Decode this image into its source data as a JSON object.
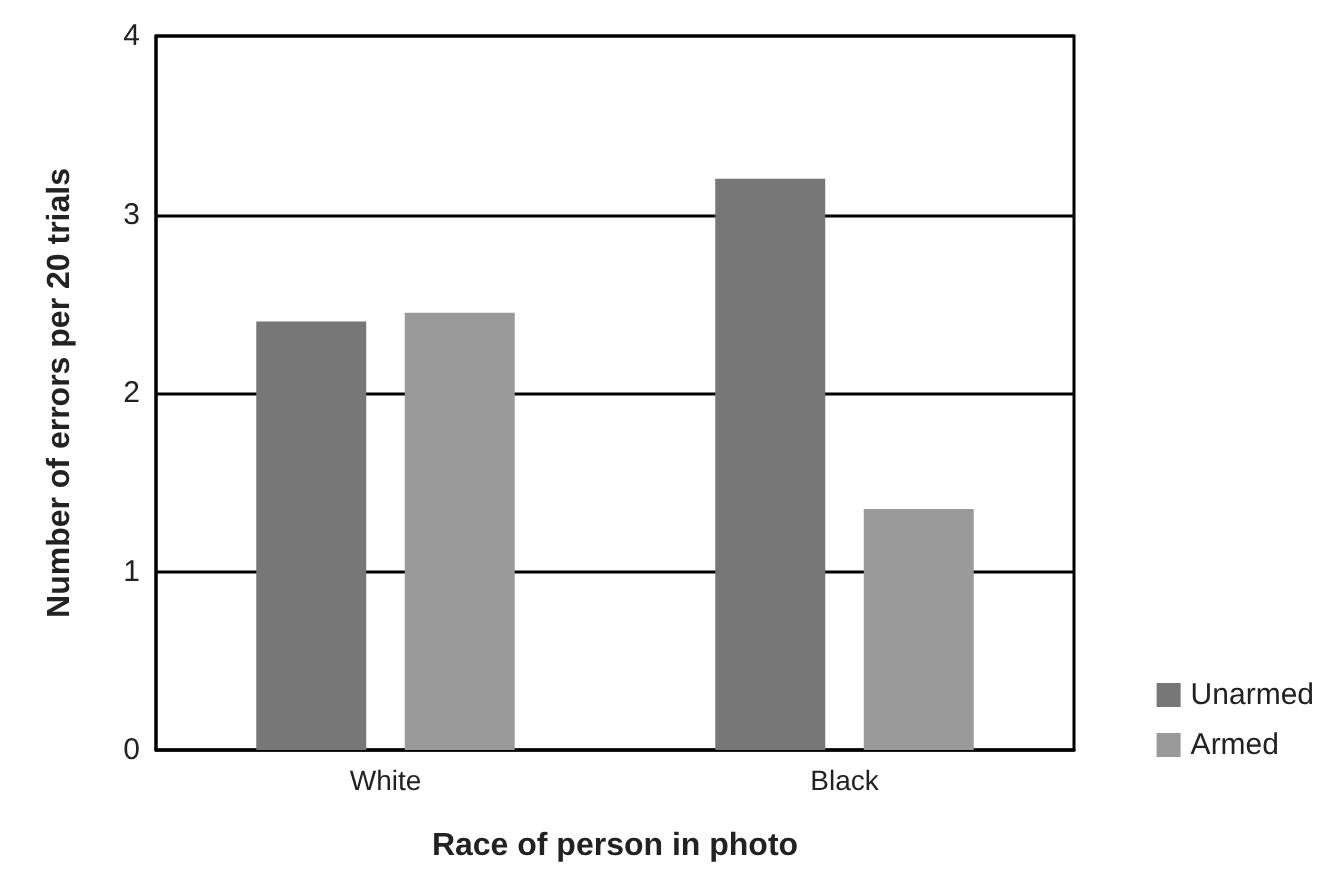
{
  "chart_data": {
    "type": "bar",
    "xlabel": "Race of person in photo",
    "ylabel": "Number of errors per 20 trials",
    "categories": [
      "White",
      "Black"
    ],
    "series": [
      {
        "name": "Unarmed",
        "color": "#777777",
        "values": [
          2.4,
          3.2
        ]
      },
      {
        "name": "Armed",
        "color": "#9a9a9a",
        "values": [
          2.45,
          1.35
        ]
      }
    ],
    "ylim": [
      0,
      4
    ],
    "yticks": [
      0,
      1,
      2,
      3,
      4
    ],
    "grid": "y",
    "legend": "bottom right"
  }
}
